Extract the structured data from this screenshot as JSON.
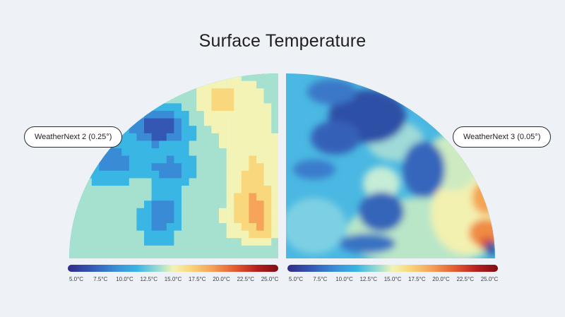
{
  "title": "Surface Temperature",
  "panels": [
    {
      "label": "WeatherNext 2 (0.25°)"
    },
    {
      "label": "WeatherNext 3 (0.05°)"
    }
  ],
  "colorbar": {
    "ticks": [
      "5.0°C",
      "7.5°C",
      "10.0°C",
      "12.5°C",
      "15.0°C",
      "17.5°C",
      "20.0°C",
      "22.5°C",
      "25.0°C"
    ],
    "colors": [
      "#2f2d86",
      "#3457b4",
      "#3a8bd6",
      "#39b6e3",
      "#a6e0cf",
      "#f2f3b5",
      "#f9d77d",
      "#f5a45a",
      "#e2582f",
      "#b51f1f",
      "#7f0d12"
    ]
  }
}
